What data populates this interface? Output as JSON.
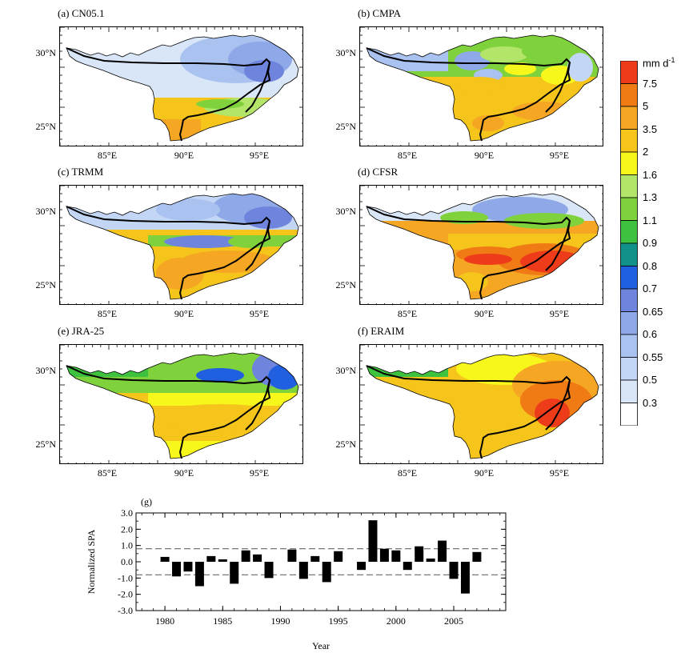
{
  "colors": {
    "levels": [
      "#ffffff",
      "#d9e6f7",
      "#c3d6f5",
      "#a9c2f0",
      "#8ea8e8",
      "#6f85dd",
      "#1f5fe0",
      "#11918a",
      "#3ec13e",
      "#7fd23c",
      "#b3e56b",
      "#f7f71c",
      "#f5c51b",
      "#f5a623",
      "#f07a14",
      "#ee3b1a"
    ],
    "river": "#000000",
    "bar": "#000000"
  },
  "colorbar": {
    "unit": "mm d",
    "unit_exp": "-1",
    "labels": [
      "7.5",
      "5",
      "3.5",
      "2",
      "1.6",
      "1.3",
      "1.1",
      "0.9",
      "0.8",
      "0.7",
      "0.65",
      "0.6",
      "0.55",
      "0.5",
      "0.3"
    ]
  },
  "panels": [
    {
      "title": "(a)  CN05.1",
      "pattern": "a"
    },
    {
      "title": "(b)  CMPA",
      "pattern": "b"
    },
    {
      "title": "(c)  TRMM",
      "pattern": "c"
    },
    {
      "title": "(d)  CFSR",
      "pattern": "d"
    },
    {
      "title": "(e)  JRA-25",
      "pattern": "e"
    },
    {
      "title": "(f)  ERAIM",
      "pattern": "f"
    }
  ],
  "map_axes": {
    "lat_ticks": [
      "30°N",
      "25°N"
    ],
    "lon_ticks": [
      "85°E",
      "90°E",
      "95°E"
    ]
  },
  "chart_data": {
    "type": "bar",
    "title": "(g)",
    "xlabel": "Year",
    "ylabel": "Normalized SPA",
    "ylim": [
      -3.0,
      3.0
    ],
    "yticks": [
      "3.0",
      "2.0",
      "1.0",
      "0.0",
      "-1.0",
      "-2.0",
      "-3.0"
    ],
    "xticks": [
      "1980",
      "1985",
      "1990",
      "1995",
      "2000",
      "2005"
    ],
    "dashed_lines": [
      0.8,
      -0.8
    ],
    "x": [
      1980,
      1981,
      1982,
      1983,
      1984,
      1985,
      1986,
      1987,
      1988,
      1989,
      1990,
      1991,
      1992,
      1993,
      1994,
      1995,
      1996,
      1997,
      1998,
      1999,
      2000,
      2001,
      2002,
      2003,
      2004,
      2005,
      2006,
      2007
    ],
    "values": [
      0.3,
      -0.9,
      -0.6,
      -1.5,
      0.35,
      0.15,
      -1.35,
      0.7,
      0.45,
      -1.0,
      0.0,
      0.75,
      -1.05,
      0.35,
      -1.25,
      0.65,
      0.0,
      -0.5,
      2.55,
      0.8,
      0.7,
      -0.5,
      0.95,
      0.2,
      1.3,
      -1.05,
      -1.95,
      0.6
    ]
  }
}
